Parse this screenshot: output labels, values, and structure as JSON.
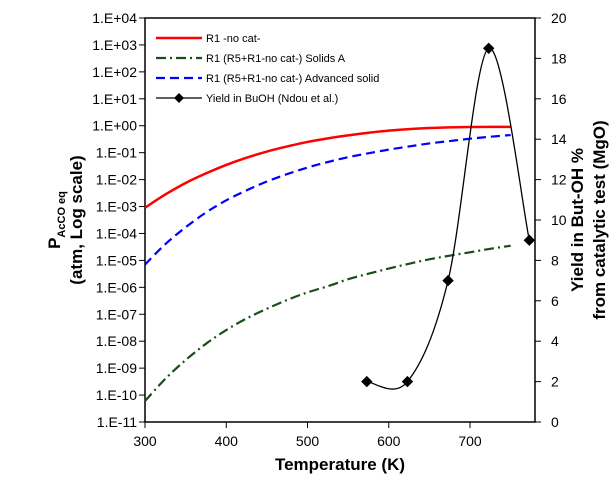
{
  "chart_data": {
    "type": "line",
    "xlabel": "Temperature (K)",
    "x_ticks": [
      "300",
      "400",
      "500",
      "600",
      "700"
    ],
    "xlim": [
      300,
      780
    ],
    "y_left": {
      "label_main": "P",
      "label_sub": "AcCO eq",
      "label_line2": "(atm, Log scale)",
      "scale": "log",
      "ylim": [
        1e-11,
        10000.0
      ],
      "tick_labels": [
        "1.E-11",
        "1.E-10",
        "1.E-09",
        "1.E-08",
        "1.E-07",
        "1.E-06",
        "1.E-05",
        "1.E-04",
        "1.E-03",
        "1.E-02",
        "1.E-01",
        "1.E+00",
        "1.E+01",
        "1.E+02",
        "1.E+03",
        "1.E+04"
      ]
    },
    "y_right": {
      "label_line1": "Yield in But-OH %",
      "label_line2": "from catalytic test (MgO)",
      "ylim": [
        0,
        20
      ],
      "tick_labels": [
        "0",
        "2",
        "4",
        "6",
        "8",
        "10",
        "12",
        "14",
        "16",
        "18",
        "20"
      ]
    },
    "series": [
      {
        "name": "R1 -no cat-",
        "axis": "left",
        "color": "#ff0000",
        "style": "solid",
        "x": [
          300,
          325,
          350,
          375,
          400,
          425,
          450,
          475,
          500,
          525,
          550,
          575,
          600,
          625,
          650,
          675,
          700,
          725,
          750
        ],
        "y": [
          0.0009,
          0.0028,
          0.0075,
          0.017,
          0.035,
          0.065,
          0.11,
          0.17,
          0.25,
          0.34,
          0.44,
          0.55,
          0.66,
          0.75,
          0.82,
          0.87,
          0.9,
          0.91,
          0.91
        ]
      },
      {
        "name": "R1 (R5+R1-no cat-) Solids A",
        "axis": "left",
        "color": "#1a4d1a",
        "style": "dash-dot",
        "x": [
          300,
          325,
          350,
          375,
          400,
          425,
          450,
          475,
          500,
          525,
          550,
          575,
          600,
          625,
          650,
          675,
          700,
          725,
          750
        ],
        "y": [
          6e-11,
          4e-10,
          2e-09,
          8e-09,
          2.6e-08,
          7e-08,
          1.6e-07,
          3.4e-07,
          6.5e-07,
          1.1e-06,
          2e-06,
          3.2e-06,
          5e-06,
          7.5e-06,
          1.1e-05,
          1.5e-05,
          2e-05,
          2.7e-05,
          3.5e-05
        ]
      },
      {
        "name": "R1 (R5+R1-no cat-) Advanced solid",
        "axis": "left",
        "color": "#0000ff",
        "style": "dashed",
        "x": [
          300,
          325,
          350,
          375,
          400,
          425,
          450,
          475,
          500,
          525,
          550,
          575,
          600,
          625,
          650,
          675,
          700,
          725,
          750
        ],
        "y": [
          7e-06,
          4e-05,
          0.00017,
          0.0006,
          0.0017,
          0.004,
          0.0085,
          0.016,
          0.028,
          0.045,
          0.068,
          0.095,
          0.13,
          0.17,
          0.22,
          0.27,
          0.33,
          0.39,
          0.45
        ]
      },
      {
        "name": "Yield in BuOH (Ndou et al.)",
        "axis": "right",
        "color": "#000000",
        "style": "solid-markers",
        "marker": "diamond",
        "x": [
          573,
          623,
          673,
          723,
          773
        ],
        "y": [
          2,
          2,
          7,
          18.5,
          9
        ]
      }
    ],
    "grid": false,
    "legend_position": "top-left"
  }
}
